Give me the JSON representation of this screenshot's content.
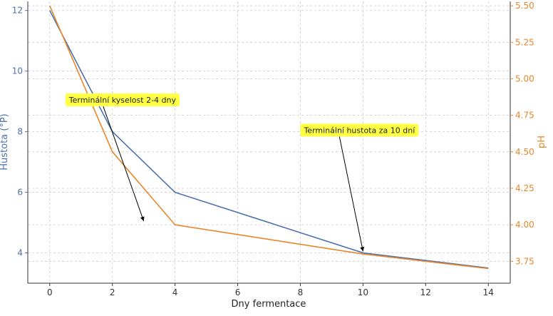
{
  "chart_data": {
    "type": "line",
    "title": "",
    "xlabel": "Dny fermentace",
    "ylabel_left": "Hustota (°P)",
    "ylabel_right": "pH",
    "xlim": [
      -0.7,
      14.7
    ],
    "ylim_left": [
      3.0,
      12.3
    ],
    "ylim_right": [
      3.6,
      5.53
    ],
    "x_ticks": [
      0,
      2,
      4,
      6,
      8,
      10,
      12,
      14
    ],
    "y_left_ticks": [
      4,
      6,
      8,
      10,
      12
    ],
    "y_right_ticks": [
      3.75,
      4.0,
      4.25,
      4.5,
      4.75,
      5.0,
      5.25,
      5.5
    ],
    "y_right_tick_labels": [
      "3.75",
      "4.00",
      "4.25",
      "4.50",
      "4.75",
      "5.00",
      "5.25",
      "5.50"
    ],
    "grid": true,
    "series": [
      {
        "axis": "left",
        "color": "#4c72b0",
        "x": [
          0,
          2,
          4,
          10,
          14
        ],
        "values": [
          12.0,
          8.0,
          6.0,
          4.0,
          3.5
        ]
      },
      {
        "axis": "right",
        "color": "#e8862a",
        "x": [
          0,
          2,
          4,
          10,
          14
        ],
        "values": [
          5.5,
          4.5,
          4.0,
          3.8,
          3.7
        ]
      }
    ],
    "annotations": [
      {
        "text": "Terminální kyselost 2-4 dny",
        "text_x": 0.5,
        "text_y": 9.05,
        "arrow_x": 3.0,
        "arrow_y": 5.05
      },
      {
        "text": "Terminální hustota za 10 dní",
        "text_x": 8.0,
        "text_y": 8.05,
        "arrow_x": 10.0,
        "arrow_y": 4.05
      }
    ],
    "annotation_bg": "#ffff44"
  }
}
